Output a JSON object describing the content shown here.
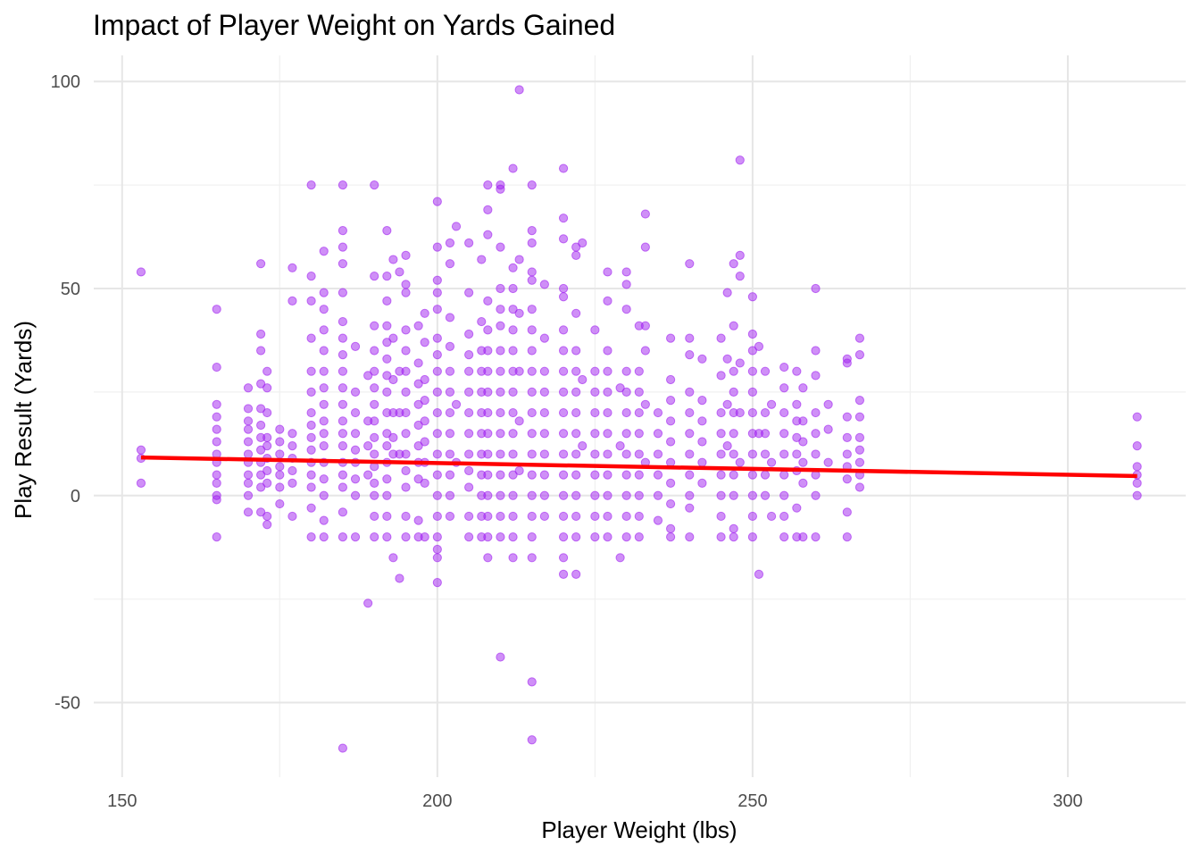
{
  "chart_data": {
    "type": "scatter",
    "title": "Impact of Player Weight on Yards Gained",
    "xlabel": "Player Weight (lbs)",
    "ylabel": "Play Result (Yards)",
    "xlim": [
      145.5,
      318.7
    ],
    "ylim": [
      -68,
      106.3
    ],
    "x_ticks": [
      150,
      200,
      250,
      300
    ],
    "y_ticks": [
      -50,
      0,
      50,
      100
    ],
    "x_minor": [
      175,
      225,
      275
    ],
    "y_minor": [
      -25,
      25,
      75
    ],
    "grid": true,
    "point_color": "#A020F0",
    "point_opacity": 0.5,
    "trend_color": "#FF0000",
    "trend_line": {
      "x": [
        153,
        311
      ],
      "y": [
        9.2,
        4.7
      ]
    },
    "columns": [
      {
        "x": 153,
        "y": [
          54,
          11,
          9,
          3
        ]
      },
      {
        "x": 165,
        "y": [
          45,
          31,
          22,
          19,
          16,
          13,
          10,
          8,
          5,
          3,
          0,
          -1,
          -10
        ]
      },
      {
        "x": 170,
        "y": [
          26,
          21,
          18,
          16,
          13,
          10,
          8,
          5,
          3,
          0,
          -4
        ]
      },
      {
        "x": 172,
        "y": [
          56,
          39,
          35,
          27,
          21,
          17,
          14,
          11,
          8,
          5,
          2,
          -4
        ]
      },
      {
        "x": 173,
        "y": [
          30,
          26,
          20,
          14,
          12,
          9,
          6,
          3,
          -5,
          -7
        ]
      },
      {
        "x": 175,
        "y": [
          16,
          13,
          10,
          7,
          5,
          2,
          -2
        ]
      },
      {
        "x": 177,
        "y": [
          55,
          47,
          15,
          12,
          9,
          6,
          3,
          -5
        ]
      },
      {
        "x": 180,
        "y": [
          75,
          53,
          47,
          38,
          30,
          25,
          20,
          17,
          14,
          11,
          8,
          5,
          2,
          -3,
          -10
        ]
      },
      {
        "x": 182,
        "y": [
          59,
          49,
          45,
          40,
          35,
          30,
          26,
          22,
          18,
          15,
          12,
          8,
          4,
          0,
          -6,
          -10
        ]
      },
      {
        "x": 185,
        "y": [
          75,
          64,
          60,
          56,
          49,
          42,
          38,
          34,
          30,
          26,
          22,
          18,
          15,
          12,
          8,
          5,
          2,
          -4,
          -10,
          -61
        ]
      },
      {
        "x": 187,
        "y": [
          36,
          25,
          20,
          15,
          11,
          8,
          4,
          0,
          -10
        ]
      },
      {
        "x": 189,
        "y": [
          29,
          18,
          12,
          5,
          -26
        ]
      },
      {
        "x": 190,
        "y": [
          75,
          53,
          41,
          35,
          30,
          26,
          22,
          18,
          14,
          10,
          7,
          3,
          0,
          -5,
          -10
        ]
      },
      {
        "x": 192,
        "y": [
          64,
          53,
          47,
          41,
          37,
          33,
          29,
          25,
          20,
          15,
          12,
          8,
          4,
          0,
          -5,
          -10
        ]
      },
      {
        "x": 193,
        "y": [
          57,
          38,
          28,
          20,
          14,
          10,
          -15
        ]
      },
      {
        "x": 194,
        "y": [
          54,
          30,
          20,
          10,
          -20
        ]
      },
      {
        "x": 195,
        "y": [
          58,
          51,
          49,
          40,
          35,
          30,
          25,
          20,
          15,
          10,
          6,
          2,
          -5,
          -10
        ]
      },
      {
        "x": 197,
        "y": [
          41,
          32,
          27,
          22,
          17,
          12,
          8,
          4,
          -6,
          -10
        ]
      },
      {
        "x": 198,
        "y": [
          44,
          37,
          28,
          23,
          18,
          13,
          8,
          3,
          -10
        ]
      },
      {
        "x": 200,
        "y": [
          71,
          60,
          52,
          49,
          45,
          38,
          34,
          30,
          25,
          20,
          15,
          10,
          5,
          0,
          -5,
          -10,
          -13,
          -15,
          -21
        ]
      },
      {
        "x": 202,
        "y": [
          61,
          56,
          43,
          36,
          30,
          25,
          20,
          15,
          10,
          5,
          0,
          -5
        ]
      },
      {
        "x": 203,
        "y": [
          65,
          22,
          8
        ]
      },
      {
        "x": 205,
        "y": [
          61,
          49,
          39,
          34,
          30,
          25,
          20,
          15,
          10,
          6,
          2,
          -5,
          -10
        ]
      },
      {
        "x": 207,
        "y": [
          57,
          42,
          35,
          30,
          25,
          20,
          15,
          10,
          5,
          0,
          -5,
          -10
        ]
      },
      {
        "x": 208,
        "y": [
          75,
          69,
          63,
          47,
          40,
          35,
          30,
          25,
          20,
          15,
          10,
          5,
          0,
          -5,
          -10,
          -15
        ]
      },
      {
        "x": 210,
        "y": [
          75,
          74,
          60,
          50,
          45,
          41,
          35,
          30,
          25,
          20,
          15,
          10,
          5,
          0,
          -5,
          -10,
          -39
        ]
      },
      {
        "x": 212,
        "y": [
          79,
          55,
          50,
          45,
          40,
          35,
          30,
          25,
          20,
          15,
          10,
          5,
          0,
          -5,
          -10,
          -15
        ]
      },
      {
        "x": 213,
        "y": [
          98,
          57,
          44,
          30,
          18,
          6
        ]
      },
      {
        "x": 215,
        "y": [
          75,
          64,
          61,
          54,
          52,
          45,
          40,
          35,
          30,
          25,
          20,
          15,
          10,
          5,
          0,
          -5,
          -10,
          -15,
          -45,
          -59
        ]
      },
      {
        "x": 217,
        "y": [
          51,
          38,
          30,
          25,
          20,
          15,
          10,
          5,
          0,
          -5
        ]
      },
      {
        "x": 220,
        "y": [
          79,
          67,
          62,
          50,
          48,
          40,
          35,
          30,
          25,
          20,
          15,
          10,
          5,
          0,
          -5,
          -10,
          -15,
          -19
        ]
      },
      {
        "x": 222,
        "y": [
          60,
          58,
          44,
          35,
          30,
          25,
          20,
          15,
          10,
          5,
          0,
          -5,
          -10,
          -19
        ]
      },
      {
        "x": 223,
        "y": [
          61,
          28,
          12
        ]
      },
      {
        "x": 225,
        "y": [
          40,
          30,
          25,
          20,
          15,
          10,
          5,
          0,
          -5,
          -10
        ]
      },
      {
        "x": 227,
        "y": [
          54,
          47,
          35,
          30,
          25,
          20,
          15,
          10,
          5,
          0,
          -5,
          -10
        ]
      },
      {
        "x": 229,
        "y": [
          26,
          12,
          -15
        ]
      },
      {
        "x": 230,
        "y": [
          54,
          51,
          45,
          30,
          25,
          20,
          15,
          10,
          5,
          0,
          -5,
          -10
        ]
      },
      {
        "x": 232,
        "y": [
          41,
          30,
          25,
          20,
          15,
          10,
          5,
          0,
          -5,
          -10
        ]
      },
      {
        "x": 233,
        "y": [
          68,
          60,
          41,
          35,
          22,
          8
        ]
      },
      {
        "x": 235,
        "y": [
          20,
          15,
          10,
          5,
          0,
          -6
        ]
      },
      {
        "x": 237,
        "y": [
          38,
          28,
          23,
          18,
          13,
          8,
          3,
          -2,
          -8,
          -10
        ]
      },
      {
        "x": 240,
        "y": [
          56,
          38,
          34,
          25,
          20,
          15,
          10,
          5,
          0,
          -3,
          -10
        ]
      },
      {
        "x": 242,
        "y": [
          33,
          23,
          18,
          13,
          8,
          3
        ]
      },
      {
        "x": 245,
        "y": [
          38,
          29,
          20,
          15,
          10,
          5,
          0,
          -5,
          -10
        ]
      },
      {
        "x": 246,
        "y": [
          49,
          33,
          22,
          12
        ]
      },
      {
        "x": 247,
        "y": [
          56,
          41,
          30,
          25,
          20,
          15,
          10,
          5,
          0,
          -8,
          -10
        ]
      },
      {
        "x": 248,
        "y": [
          81,
          58,
          53,
          32,
          20,
          8
        ]
      },
      {
        "x": 250,
        "y": [
          48,
          39,
          35,
          30,
          25,
          20,
          15,
          10,
          5,
          0,
          -5,
          -10
        ]
      },
      {
        "x": 251,
        "y": [
          36,
          15,
          -19
        ]
      },
      {
        "x": 252,
        "y": [
          30,
          20,
          15,
          10,
          5,
          0
        ]
      },
      {
        "x": 253,
        "y": [
          22,
          8,
          -5
        ]
      },
      {
        "x": 255,
        "y": [
          31,
          26,
          20,
          15,
          10,
          5,
          0,
          -5,
          -10
        ]
      },
      {
        "x": 257,
        "y": [
          30,
          22,
          18,
          14,
          10,
          6,
          -3,
          -10
        ]
      },
      {
        "x": 258,
        "y": [
          26,
          18,
          13,
          8,
          3,
          -10
        ]
      },
      {
        "x": 260,
        "y": [
          50,
          35,
          29,
          20,
          15,
          10,
          5,
          0,
          -10
        ]
      },
      {
        "x": 262,
        "y": [
          22,
          16,
          8
        ]
      },
      {
        "x": 265,
        "y": [
          33,
          32,
          19,
          14,
          10,
          7,
          4,
          -4,
          -10
        ]
      },
      {
        "x": 267,
        "y": [
          38,
          34,
          23,
          19,
          14,
          11,
          8,
          5,
          2
        ]
      },
      {
        "x": 311,
        "y": [
          19,
          12,
          7,
          5,
          3,
          0
        ]
      }
    ]
  }
}
